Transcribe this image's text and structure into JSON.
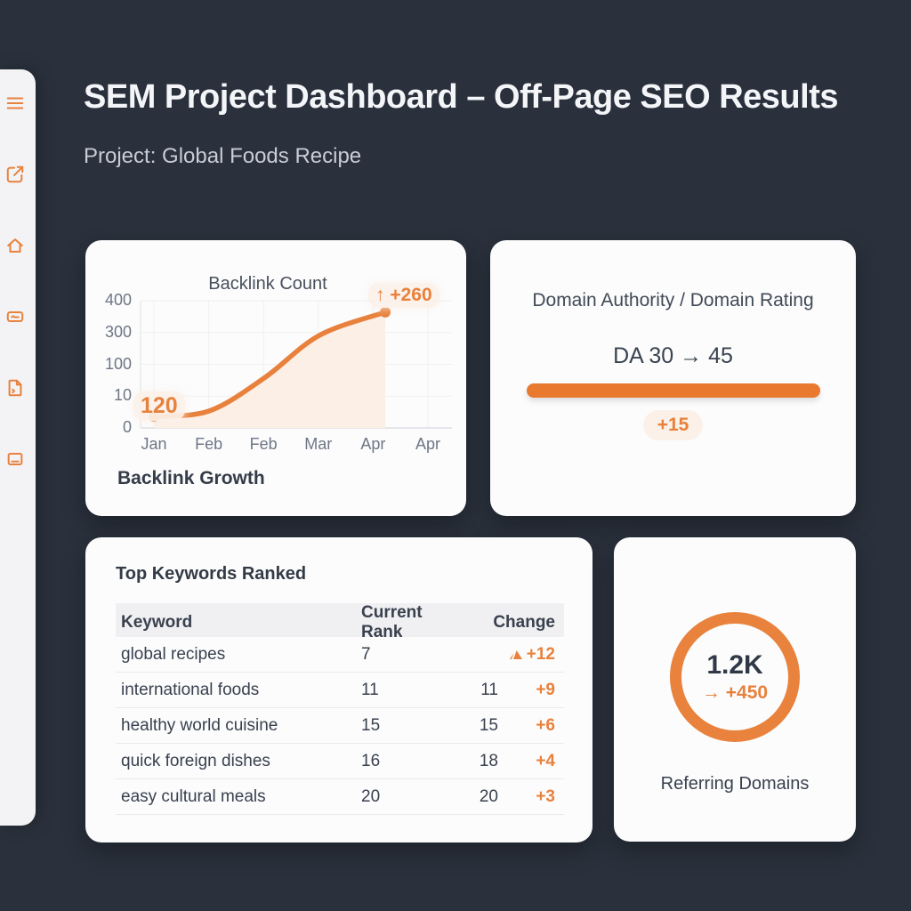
{
  "header": {
    "title": "SEM Project Dashboard – Off-Page SEO Results",
    "subtitle": "Project: Global Foods Recipe"
  },
  "colors": {
    "background": "#2a313c",
    "card": "#fcfcfd",
    "sidebar": "#f3f3f6",
    "accent_orange": "#e8813c",
    "accent_bar": "#e8792e",
    "accent_light": "#fbf1e8",
    "text_dark": "#39414e",
    "text_light": "#f4f5f8",
    "text_muted": "#6e7684"
  },
  "sidebar": {
    "icons": [
      {
        "name": "menu-icon"
      },
      {
        "name": "compose-icon"
      },
      {
        "name": "home-icon"
      },
      {
        "name": "card-icon"
      },
      {
        "name": "file-icon"
      },
      {
        "name": "panel-icon"
      }
    ]
  },
  "backlink_card": {
    "footer": "Backlink Growth"
  },
  "chart_data": {
    "type": "area",
    "title": "Backlink Count",
    "xlabel": "",
    "ylabel": "",
    "grid": true,
    "legend": false,
    "x_tick_labels": [
      "Jan",
      "Feb",
      "Feb",
      "Mar",
      "Apr",
      "Apr"
    ],
    "y_tick_labels": [
      "400",
      "300",
      "100",
      "10",
      "0"
    ],
    "points": [
      {
        "x": "Jan",
        "value": 120
      },
      {
        "x": "Feb",
        "value": 140
      },
      {
        "x": "Feb",
        "value": 230
      },
      {
        "x": "Mar",
        "value": 330
      },
      {
        "x": "Apr",
        "value": 380
      }
    ],
    "points_frac": [
      [
        0.043,
        0.91
      ],
      [
        0.22,
        0.867
      ],
      [
        0.397,
        0.608
      ],
      [
        0.574,
        0.273
      ],
      [
        0.786,
        0.09
      ]
    ],
    "start_annotation": "120",
    "end_arrow": "↑",
    "end_change": "+260",
    "line_color": "#e8813c",
    "fill_color": "#fcf0e6"
  },
  "domain_card": {
    "title": "Domain Authority / Domain Rating",
    "value_text": "DA 30 → 45",
    "change_badge": "+15"
  },
  "keywords_card": {
    "title": "Top Keywords Ranked",
    "columns": [
      "Keyword",
      "Current Rank",
      "Change"
    ],
    "rows": [
      {
        "keyword": "global recipes",
        "current_rank": "7",
        "prev_rank": "",
        "change": "+12",
        "up_icon": true
      },
      {
        "keyword": "international foods",
        "current_rank": "11",
        "prev_rank": "11",
        "change": "+9",
        "up_icon": false
      },
      {
        "keyword": "healthy world cuisine",
        "current_rank": "15",
        "prev_rank": "15",
        "change": "+6",
        "up_icon": false
      },
      {
        "keyword": "quick foreign dishes",
        "current_rank": "16",
        "prev_rank": "18",
        "change": "+4",
        "up_icon": false
      },
      {
        "keyword": "easy cultural meals",
        "current_rank": "20",
        "prev_rank": "20",
        "change": "+3",
        "up_icon": false
      }
    ]
  },
  "referring_card": {
    "value": "1.2K",
    "change_arrow": "→",
    "change": "+450",
    "label": "Referring Domains"
  }
}
